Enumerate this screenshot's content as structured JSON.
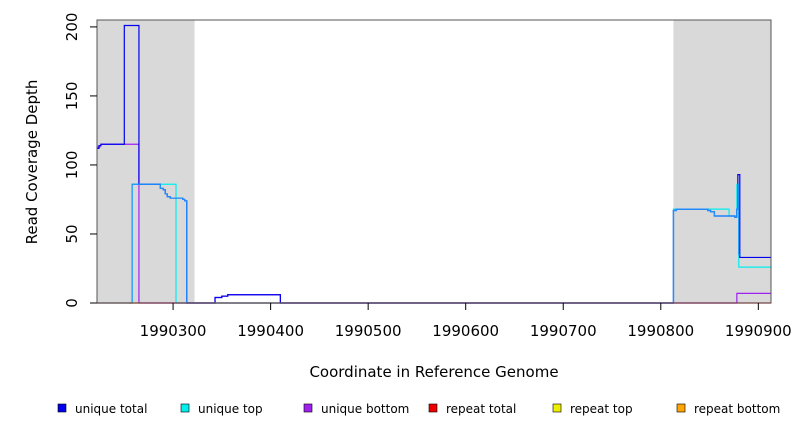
{
  "chart_data": {
    "type": "line",
    "xlabel": "Coordinate in Reference Genome",
    "ylabel": "Read Coverage Depth",
    "xlim": [
      1990222,
      1990913
    ],
    "ylim": [
      0,
      205
    ],
    "x_ticks": [
      1990300,
      1990400,
      1990500,
      1990600,
      1990700,
      1990800,
      1990900
    ],
    "x_tick_labels": [
      "1990300",
      "1990400",
      "1990500",
      "1990600",
      "1990700",
      "1990800",
      "1990900"
    ],
    "y_ticks": [
      0,
      50,
      100,
      150,
      200
    ],
    "y_tick_labels": [
      "0",
      "50",
      "100",
      "150",
      "200"
    ],
    "shaded_regions": [
      {
        "start": 1990222,
        "end": 1990322,
        "color": "#d9d9d9"
      },
      {
        "start": 1990813,
        "end": 1990913,
        "color": "#d9d9d9"
      }
    ],
    "legend": {
      "placement": "bottom",
      "items": [
        {
          "label": "unique total",
          "color": "#0000ee"
        },
        {
          "label": "unique top",
          "color": "#00eeee"
        },
        {
          "label": "unique bottom",
          "color": "#a020f0"
        },
        {
          "label": "repeat total",
          "color": "#ee0000"
        },
        {
          "label": "repeat top",
          "color": "#eeee00"
        },
        {
          "label": "repeat bottom",
          "color": "#ffa500"
        }
      ]
    },
    "series": [
      {
        "color": "#a020f0",
        "points": [
          [
            1990222,
            113
          ],
          [
            1990225,
            113
          ],
          [
            1990225,
            114
          ],
          [
            1990226,
            114
          ],
          [
            1990226,
            115
          ],
          [
            1990250,
            115
          ],
          [
            1990250,
            115
          ],
          [
            1990265,
            115
          ],
          [
            1990265,
            0
          ],
          [
            1990327,
            0
          ],
          [
            1990327,
            0
          ],
          [
            1990334,
            0
          ],
          [
            1990334,
            0
          ],
          [
            1990343,
            0
          ],
          [
            1990343,
            4
          ],
          [
            1990350,
            4
          ],
          [
            1990350,
            5
          ],
          [
            1990356,
            5
          ],
          [
            1990356,
            6
          ],
          [
            1990410,
            6
          ],
          [
            1990410,
            0
          ],
          [
            1990813,
            0
          ],
          [
            1990813,
            0
          ],
          [
            1990878,
            0
          ],
          [
            1990878,
            7
          ],
          [
            1990913,
            7
          ]
        ]
      },
      {
        "color": "#00eeee",
        "points": [
          [
            1990222,
            0
          ],
          [
            1990258,
            0
          ],
          [
            1990258,
            86
          ],
          [
            1990266,
            86
          ],
          [
            1990266,
            86
          ],
          [
            1990303,
            86
          ],
          [
            1990303,
            0
          ],
          [
            1990813,
            0
          ],
          [
            1990813,
            68
          ],
          [
            1990870,
            68
          ],
          [
            1990870,
            63
          ],
          [
            1990878,
            63
          ],
          [
            1990878,
            86
          ],
          [
            1990880,
            86
          ],
          [
            1990880,
            26
          ],
          [
            1990913,
            26
          ]
        ]
      },
      {
        "color": "#0000ee",
        "points": [
          [
            1990222,
            112
          ],
          [
            1990224,
            112
          ],
          [
            1990224,
            114
          ],
          [
            1990226,
            114
          ],
          [
            1990226,
            115
          ],
          [
            1990250,
            115
          ],
          [
            1990250,
            201
          ],
          [
            1990265,
            201
          ],
          [
            1990265,
            86
          ],
          [
            1990287,
            86
          ],
          [
            1990287,
            83
          ],
          [
            1990290,
            83
          ],
          [
            1990290,
            82
          ],
          [
            1990292,
            82
          ],
          [
            1990292,
            79
          ],
          [
            1990294,
            79
          ],
          [
            1990294,
            77
          ],
          [
            1990297,
            77
          ],
          [
            1990297,
            76
          ],
          [
            1990310,
            76
          ],
          [
            1990310,
            75
          ],
          [
            1990312,
            75
          ],
          [
            1990312,
            74
          ],
          [
            1990314,
            74
          ],
          [
            1990314,
            0
          ],
          [
            1990327,
            0
          ],
          [
            1990327,
            0
          ],
          [
            1990334,
            0
          ],
          [
            1990334,
            0
          ],
          [
            1990343,
            0
          ],
          [
            1990343,
            4
          ],
          [
            1990350,
            4
          ],
          [
            1990350,
            5
          ],
          [
            1990356,
            5
          ],
          [
            1990356,
            6
          ],
          [
            1990410,
            6
          ],
          [
            1990410,
            0
          ],
          [
            1990813,
            0
          ],
          [
            1990813,
            67
          ],
          [
            1990816,
            67
          ],
          [
            1990816,
            68
          ],
          [
            1990848,
            68
          ],
          [
            1990848,
            67
          ],
          [
            1990851,
            67
          ],
          [
            1990851,
            66
          ],
          [
            1990855,
            66
          ],
          [
            1990855,
            63
          ],
          [
            1990876,
            63
          ],
          [
            1990876,
            62
          ],
          [
            1990878,
            62
          ],
          [
            1990878,
            68
          ],
          [
            1990879,
            68
          ],
          [
            1990879,
            93
          ],
          [
            1990881,
            93
          ],
          [
            1990881,
            33
          ],
          [
            1990913,
            33
          ]
        ]
      },
      {
        "color": "#1e90ff",
        "points": [
          [
            1990255,
            0
          ],
          [
            1990258,
            0
          ],
          [
            1990258,
            86
          ],
          [
            1990287,
            86
          ],
          [
            1990287,
            83
          ],
          [
            1990290,
            83
          ],
          [
            1990290,
            82
          ],
          [
            1990292,
            82
          ],
          [
            1990292,
            79
          ],
          [
            1990294,
            79
          ],
          [
            1990294,
            77
          ],
          [
            1990297,
            77
          ],
          [
            1990297,
            76
          ],
          [
            1990310,
            76
          ],
          [
            1990310,
            75
          ],
          [
            1990312,
            75
          ],
          [
            1990312,
            74
          ],
          [
            1990314,
            74
          ],
          [
            1990314,
            0
          ],
          [
            1990324,
            0
          ],
          [
            1990810,
            0
          ],
          [
            1990813,
            0
          ],
          [
            1990813,
            67
          ],
          [
            1990816,
            67
          ],
          [
            1990816,
            68
          ],
          [
            1990848,
            68
          ],
          [
            1990848,
            67
          ],
          [
            1990851,
            67
          ],
          [
            1990851,
            66
          ],
          [
            1990855,
            66
          ],
          [
            1990855,
            63
          ],
          [
            1990876,
            63
          ],
          [
            1990876,
            62
          ],
          [
            1990878,
            62
          ],
          [
            1990878,
            68
          ],
          [
            1990879,
            68
          ],
          [
            1990879,
            86
          ],
          [
            1990880,
            86
          ],
          [
            1990880,
            35
          ],
          [
            1990882,
            35
          ]
        ]
      },
      {
        "color": "#ee0000",
        "points": [
          [
            1990222,
            0
          ],
          [
            1990255,
            0
          ],
          [
            1990265,
            0
          ],
          [
            1990327,
            0
          ],
          [
            1990813,
            0
          ],
          [
            1990913,
            0
          ]
        ]
      },
      {
        "color": "#ffa500",
        "points": [
          [
            1990255,
            0
          ],
          [
            1990265,
            0
          ]
        ]
      }
    ]
  }
}
